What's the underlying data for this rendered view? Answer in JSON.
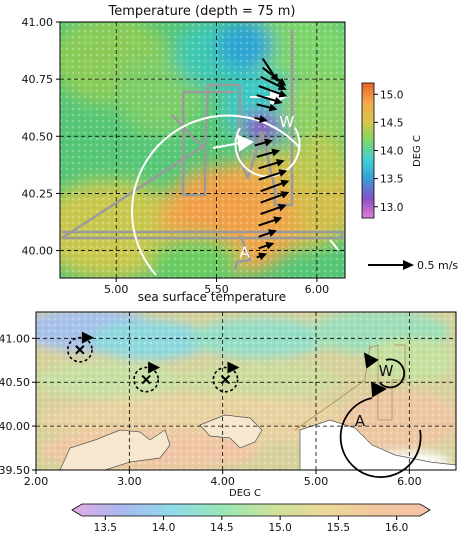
{
  "chart_data": [
    {
      "type": "heatmap",
      "title": "Temperature (depth = 75 m)",
      "xticks": [
        "5.00",
        "5.50",
        "6.00"
      ],
      "x_tick_values": [
        5.0,
        5.5,
        6.0
      ],
      "yticks": [
        "40.00",
        "40.25",
        "40.50",
        "40.75",
        "41.00"
      ],
      "y_tick_values": [
        40.0,
        40.25,
        40.5,
        40.75,
        41.0
      ],
      "xlim": [
        4.72,
        6.14
      ],
      "ylim": [
        39.88,
        41.0
      ],
      "grid": true,
      "colorbar": {
        "label": "DEG C",
        "ticks": [
          "13.0",
          "13.5",
          "14.0",
          "14.5",
          "15.0"
        ],
        "tick_values": [
          13.0,
          13.5,
          14.0,
          14.5,
          15.0
        ],
        "range": [
          12.8,
          15.2
        ],
        "colors": [
          "#e080d0",
          "#8a4fc4",
          "#3a9bd8",
          "#3fd0d0",
          "#7fd66a",
          "#d8c64a",
          "#f3a84c",
          "#e8642c"
        ]
      },
      "quiver_key": {
        "label": "0.5 m/s"
      },
      "eddy_labels": [
        {
          "text": "W",
          "x": 5.85,
          "y": 40.54
        },
        {
          "text": "A",
          "x": 5.64,
          "y": 39.97
        }
      ],
      "vectors": [
        {
          "x": 5.73,
          "y": 40.84,
          "u": 0.12,
          "v": -0.18
        },
        {
          "x": 5.73,
          "y": 40.8,
          "u": 0.18,
          "v": -0.14
        },
        {
          "x": 5.72,
          "y": 40.76,
          "u": 0.2,
          "v": -0.1
        },
        {
          "x": 5.71,
          "y": 40.72,
          "u": 0.22,
          "v": -0.08
        },
        {
          "x": 5.7,
          "y": 40.68,
          "u": 0.2,
          "v": -0.06
        },
        {
          "x": 5.7,
          "y": 40.64,
          "u": 0.16,
          "v": -0.04
        },
        {
          "x": 5.69,
          "y": 40.58,
          "u": 0.1,
          "v": -0.02
        },
        {
          "x": 5.69,
          "y": 40.46,
          "u": 0.14,
          "v": 0.04
        },
        {
          "x": 5.7,
          "y": 40.41,
          "u": 0.18,
          "v": 0.05
        },
        {
          "x": 5.71,
          "y": 40.36,
          "u": 0.2,
          "v": 0.06
        },
        {
          "x": 5.71,
          "y": 40.31,
          "u": 0.22,
          "v": 0.07
        },
        {
          "x": 5.72,
          "y": 40.26,
          "u": 0.22,
          "v": 0.08
        },
        {
          "x": 5.72,
          "y": 40.21,
          "u": 0.22,
          "v": 0.08
        },
        {
          "x": 5.72,
          "y": 40.16,
          "u": 0.2,
          "v": 0.07
        },
        {
          "x": 5.71,
          "y": 40.11,
          "u": 0.18,
          "v": 0.06
        },
        {
          "x": 5.71,
          "y": 40.06,
          "u": 0.14,
          "v": 0.05
        },
        {
          "x": 5.71,
          "y": 40.01,
          "u": 0.12,
          "v": 0.04
        },
        {
          "x": 5.7,
          "y": 39.97,
          "u": 0.08,
          "v": 0.03
        }
      ]
    },
    {
      "type": "heatmap",
      "title": "sea surface temperature",
      "xlabel": "DEG C",
      "xticks": [
        "2.00",
        "3.00",
        "4.00",
        "5.00",
        "6.00"
      ],
      "x_tick_values": [
        2.0,
        3.0,
        4.0,
        5.0,
        6.0
      ],
      "yticks": [
        "39.50",
        "40.00",
        "40.50",
        "41.00"
      ],
      "y_tick_values": [
        39.5,
        40.0,
        40.5,
        41.0
      ],
      "xlim": [
        2.0,
        6.5
      ],
      "ylim": [
        39.5,
        41.3
      ],
      "grid": true,
      "colorbar": {
        "ticks": [
          "13.5",
          "14.0",
          "14.5",
          "15.0",
          "15.5",
          "16.0"
        ],
        "tick_values": [
          13.5,
          14.0,
          14.5,
          15.0,
          15.5,
          16.0
        ],
        "range": [
          13.3,
          16.2
        ],
        "colors": [
          "#e6a9e6",
          "#a7b9ee",
          "#8fdcea",
          "#9be6b2",
          "#cfe29b",
          "#ecd79a",
          "#f2c7a0",
          "#f5c2a8"
        ]
      },
      "markers": [
        {
          "x": 2.47,
          "y": 40.87,
          "r": 0.13
        },
        {
          "x": 3.18,
          "y": 40.53,
          "r": 0.13
        },
        {
          "x": 4.03,
          "y": 40.53,
          "r": 0.13
        }
      ],
      "eddy_labels": [
        {
          "text": "W",
          "x": 5.75,
          "y": 40.57
        },
        {
          "text": "A",
          "x": 5.47,
          "y": 40.0
        }
      ]
    }
  ]
}
